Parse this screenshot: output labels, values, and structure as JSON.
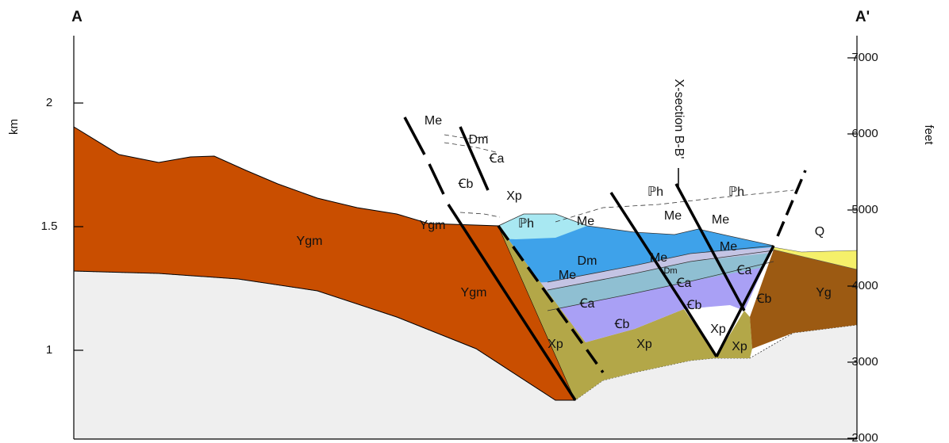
{
  "section": {
    "start": "A",
    "end": "A'",
    "xsection": "X-section B-B'"
  },
  "left_axis": {
    "label": "km",
    "ylim": [
      1,
      2
    ],
    "ticks": [
      1,
      1.5,
      2
    ]
  },
  "right_axis": {
    "label": "feet",
    "ylim": [
      2000,
      7000
    ],
    "ticks": [
      2000,
      3000,
      4000,
      5000,
      6000,
      7000
    ]
  },
  "units": [
    "Ygm",
    "Ygm",
    "Ygm",
    "Me",
    "Dm",
    "Ꞓa",
    "Ꞓb",
    "Xp",
    "ℙh",
    "Me",
    "ℙh",
    "ℙh",
    "Me",
    "Me",
    "Dm",
    "Me",
    "Me",
    "Dm",
    "Me",
    "Ꞓa",
    "Ꞓa",
    "Ꞓa",
    "Ꞓb",
    "Ꞓb",
    "Ꞓb",
    "Yg",
    "Q",
    "Xp",
    "Xp",
    "Xp",
    "Xp"
  ]
}
